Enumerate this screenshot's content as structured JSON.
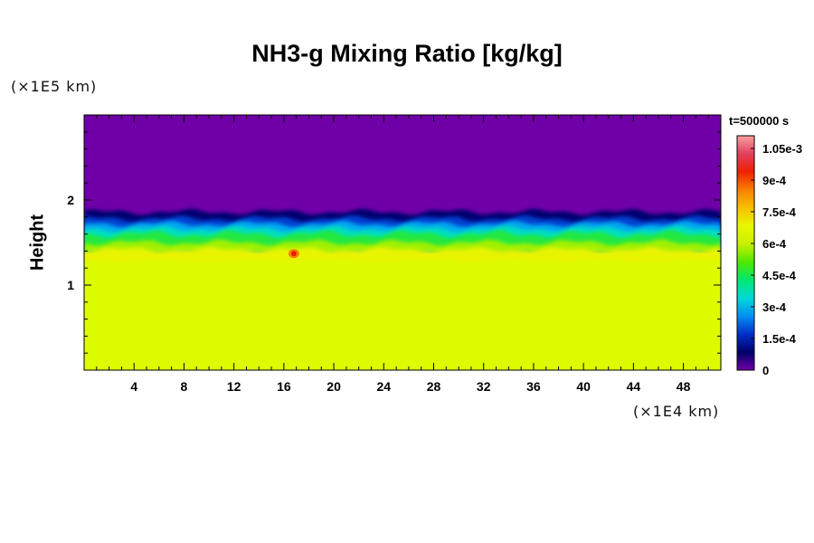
{
  "chart_data": {
    "type": "heatmap",
    "title": "NH3-g Mixing Ratio [kg/kg]",
    "ylabel": "Height",
    "xlabel": "",
    "x_unit": "(×1E4 km)",
    "y_unit": "(×1E5 km)",
    "time_label": "t=500000 s",
    "xlim": [
      0,
      51
    ],
    "ylim": [
      0,
      3
    ],
    "x_ticks": [
      4,
      8,
      12,
      16,
      20,
      24,
      28,
      32,
      36,
      40,
      44,
      48
    ],
    "x_tick_labels": [
      "4",
      "8",
      "12",
      "16",
      "20",
      "24",
      "28",
      "32",
      "36",
      "40",
      "44",
      "48"
    ],
    "y_ticks": [
      1,
      2
    ],
    "y_tick_labels": [
      "1",
      "2"
    ],
    "colorbar": {
      "min": 0,
      "max": 0.00111,
      "ticks": [
        0,
        0.00015,
        0.0003,
        0.00045,
        0.0006,
        0.00075,
        0.0009,
        0.00105
      ],
      "tick_labels": [
        "0",
        "1.5e-4",
        "3e-4",
        "4.5e-4",
        "6e-4",
        "7.5e-4",
        "9e-4",
        "1.05e-3"
      ],
      "colors": [
        "#7000a8",
        "#00006a",
        "#0030c8",
        "#0090f0",
        "#00d8d8",
        "#00e870",
        "#50e800",
        "#c8f000",
        "#e8f800",
        "#f8c000",
        "#f88000",
        "#f02000",
        "#e04060",
        "#f8a0a0"
      ]
    },
    "field": {
      "lower_value": 0.00078,
      "upper_value": 0,
      "transition_height": [
        1.4,
        1.85
      ],
      "hot_spot": {
        "x": 16.8,
        "y": 1.37,
        "value": 0.00105
      }
    }
  }
}
